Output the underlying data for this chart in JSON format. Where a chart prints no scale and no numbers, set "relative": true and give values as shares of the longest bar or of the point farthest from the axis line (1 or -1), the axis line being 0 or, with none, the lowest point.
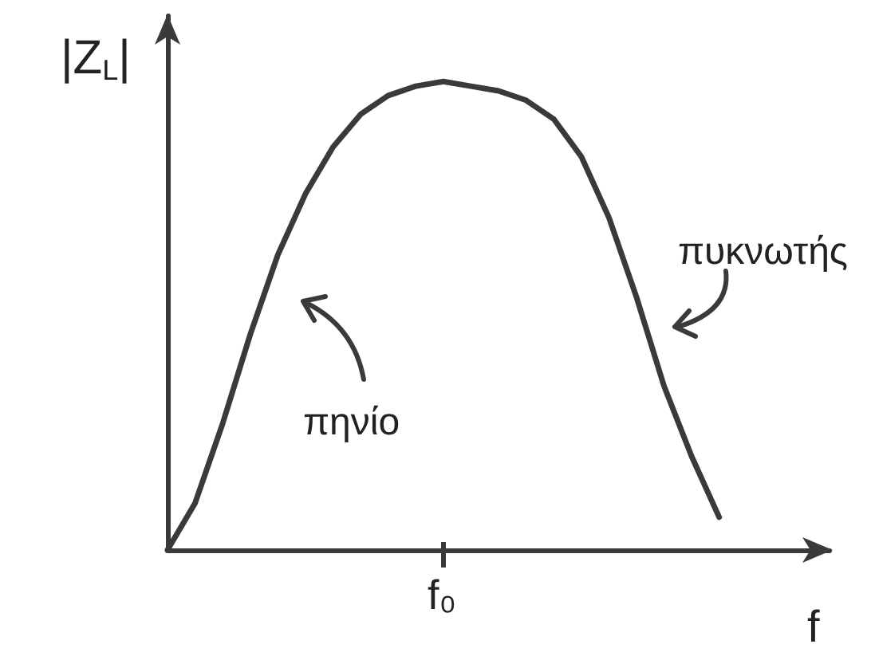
{
  "chart_data": {
    "type": "line",
    "relative": true,
    "xlabel": "f",
    "ylabel": "|Z$_{L}$|",
    "categories": [
      null,
      null,
      null,
      null,
      null,
      null,
      null,
      null,
      null,
      null,
      null,
      null,
      null,
      null,
      null,
      null,
      null,
      null,
      null,
      null,
      null,
      null,
      null,
      null,
      null
    ],
    "series": [
      {
        "color": "#3a3a3a",
        "values": [
          0,
          0.1,
          0.27,
          0.46,
          0.63,
          0.76,
          0.86,
          0.93,
          0.97,
          0.99,
          1.0,
          0.99,
          0.98,
          0.96,
          0.92,
          0.84,
          0.71,
          0.54,
          0.35,
          0.2,
          0.07,
          null,
          null,
          null,
          null
        ]
      }
    ],
    "marker": "none",
    "annotations": [
      "πηνίο",
      "πυκνωτής",
      "f₀"
    ]
  }
}
